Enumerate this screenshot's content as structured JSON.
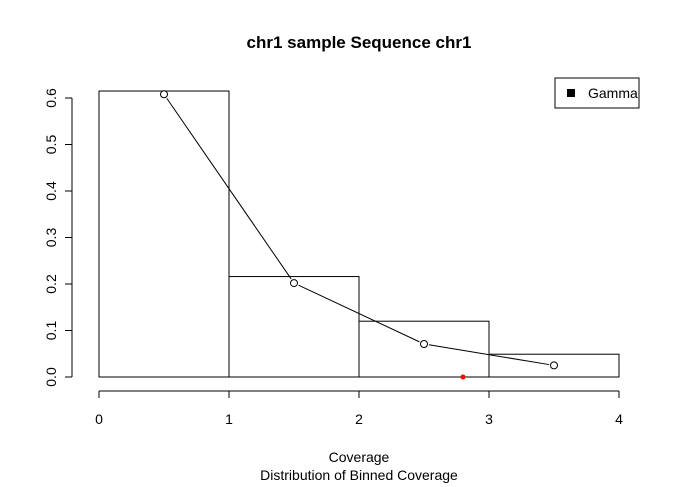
{
  "chart_data": {
    "type": "bar",
    "title": "chr1 sample Sequence chr1",
    "xlabel": "Coverage",
    "sublabel": "Distribution of Binned Coverage",
    "ylabel": "",
    "xlim": [
      0,
      4
    ],
    "ylim": [
      0,
      0.6
    ],
    "x_ticks": [
      "0",
      "1",
      "2",
      "3",
      "4"
    ],
    "y_ticks": [
      "0.0",
      "0.1",
      "0.2",
      "0.3",
      "0.4",
      "0.5",
      "0.6"
    ],
    "grid": false,
    "bins": [
      {
        "start": 0,
        "end": 1,
        "value": 0.615
      },
      {
        "start": 1,
        "end": 2,
        "value": 0.216
      },
      {
        "start": 2,
        "end": 3,
        "value": 0.12
      },
      {
        "start": 3,
        "end": 4,
        "value": 0.049
      }
    ],
    "series": [
      {
        "name": "Gamma",
        "type": "line",
        "x": [
          0.5,
          1.5,
          2.5,
          3.5
        ],
        "y": [
          0.608,
          0.202,
          0.071,
          0.025
        ],
        "color": "#000000"
      }
    ],
    "highlight_point": {
      "x": 2.8,
      "y": 0.0,
      "color": "#ff0000"
    },
    "legend": {
      "position": "top-right",
      "entries": [
        "Gamma"
      ]
    }
  }
}
